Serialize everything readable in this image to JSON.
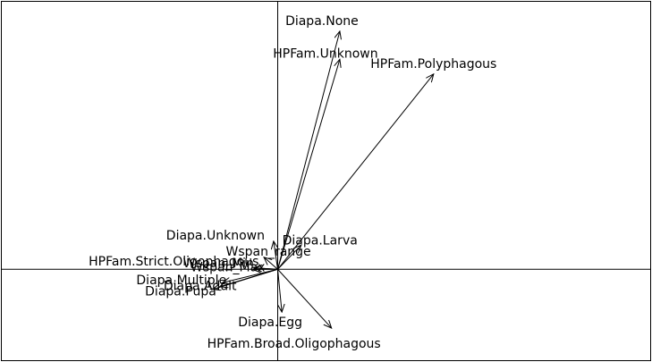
{
  "chart_data": {
    "type": "biplot",
    "title": "",
    "xlabel": "",
    "ylabel": "",
    "xlim": [
      -1.0,
      1.35
    ],
    "ylim": [
      -0.34,
      1.0
    ],
    "axes_through_origin": true,
    "grid": false,
    "arrows": [
      {
        "label": "Diapa.None",
        "x": 0.225,
        "y": 0.89
      },
      {
        "label": "HPFam.Unknown",
        "x": 0.225,
        "y": 0.785
      },
      {
        "label": "HPFam.Polyphagous",
        "x": 0.565,
        "y": 0.73
      },
      {
        "label": "Diapa.Unknown",
        "x": -0.015,
        "y": 0.105
      },
      {
        "label": "Diapa.Larva",
        "x": 0.085,
        "y": 0.09
      },
      {
        "label": "Wspan_range",
        "x": -0.05,
        "y": 0.045
      },
      {
        "label": "HPFam.Strict.Oligophagous",
        "x": -0.085,
        "y": 0.005
      },
      {
        "label": "Wspan_Max",
        "x": -0.09,
        "y": 0.0
      },
      {
        "label": "Wspan_Min",
        "x": -0.085,
        "y": 0.005
      },
      {
        "label": "Diapa.Multiple",
        "x": -0.2,
        "y": -0.05
      },
      {
        "label": "Diapa.Adult",
        "x": -0.21,
        "y": -0.065
      },
      {
        "label": "Diapa.Pupa",
        "x": -0.235,
        "y": -0.075
      },
      {
        "label": "Diapa.Egg",
        "x": 0.015,
        "y": -0.16
      },
      {
        "label": "HPFam.Broad.Oligophagous",
        "x": 0.195,
        "y": -0.22
      }
    ]
  }
}
